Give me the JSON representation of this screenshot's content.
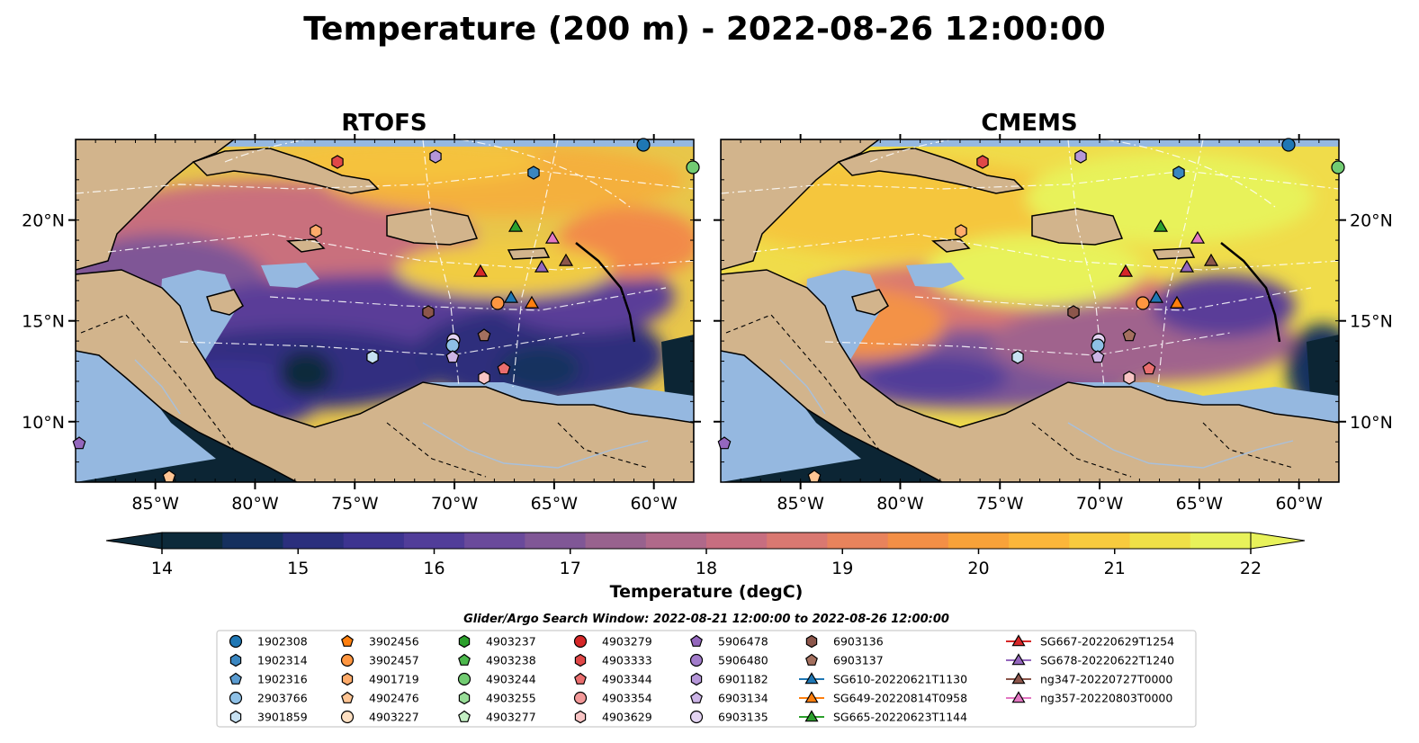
{
  "figure": {
    "title": "Temperature (200 m) - 2022-08-26 12:00:00",
    "search_window_note": "Glider/Argo Search Window: 2022-08-21 12:00:00 to 2022-08-26 12:00:00"
  },
  "chart_data": [
    {
      "type": "heatmap",
      "title": "RTOFS",
      "variable": "Temperature (200 m)",
      "x_ticks": [
        "85°W",
        "80°W",
        "75°W",
        "70°W",
        "65°W",
        "60°W"
      ],
      "y_ticks": [
        "10°N",
        "15°N",
        "20°N"
      ],
      "xlim": [
        -89,
        -58
      ],
      "ylim": [
        7,
        24
      ],
      "y_axis_side": "left",
      "grid": false
    },
    {
      "type": "heatmap",
      "title": "CMEMS",
      "variable": "Temperature (200 m)",
      "x_ticks": [
        "85°W",
        "80°W",
        "75°W",
        "70°W",
        "65°W",
        "60°W"
      ],
      "y_ticks": [
        "10°N",
        "15°N",
        "20°N"
      ],
      "xlim": [
        -89,
        -58
      ],
      "ylim": [
        7,
        24
      ],
      "y_axis_side": "right",
      "grid": false
    }
  ],
  "colorbar": {
    "label": "Temperature (degC)",
    "min": 14,
    "max": 22,
    "ticks": [
      "14",
      "15",
      "16",
      "17",
      "18",
      "19",
      "20",
      "21",
      "22"
    ],
    "extend": "both",
    "colors": [
      "#0d2a3a",
      "#15305e",
      "#2b2f7d",
      "#3d3490",
      "#513d99",
      "#6a4a9b",
      "#805796",
      "#98628e",
      "#b0698a",
      "#c76e80",
      "#d97871",
      "#e8835c",
      "#f38f46",
      "#f8a239",
      "#fbb63a",
      "#f8cb3e",
      "#efe047",
      "#e8f25a"
    ]
  },
  "map": {
    "land_color": "#d2b48c",
    "shelf_color": "#95b8e0",
    "deep_color": "#0c2534"
  },
  "legend": {
    "columns": [
      [
        {
          "label": "1902308",
          "marker": "circle",
          "color": "#1f77b4"
        },
        {
          "label": "1902314",
          "marker": "hexagon",
          "color": "#3a86c0"
        },
        {
          "label": "1902316",
          "marker": "pentagon",
          "color": "#5a9bd0"
        },
        {
          "label": "2903766",
          "marker": "circle",
          "color": "#8ec0e6"
        },
        {
          "label": "3901859",
          "marker": "hexagon",
          "color": "#c7e1f2"
        }
      ],
      [
        {
          "label": "3902456",
          "marker": "pentagon",
          "color": "#ff7f0e"
        },
        {
          "label": "3902457",
          "marker": "circle",
          "color": "#ff9640"
        },
        {
          "label": "4901719",
          "marker": "hexagon",
          "color": "#ffab6a"
        },
        {
          "label": "4902476",
          "marker": "pentagon",
          "color": "#ffc594"
        },
        {
          "label": "4903227",
          "marker": "circle",
          "color": "#ffe0c2"
        }
      ],
      [
        {
          "label": "4903237",
          "marker": "hexagon",
          "color": "#2ca02c"
        },
        {
          "label": "4903238",
          "marker": "pentagon",
          "color": "#4cb84c"
        },
        {
          "label": "4903244",
          "marker": "circle",
          "color": "#72cc72"
        },
        {
          "label": "4903255",
          "marker": "hexagon",
          "color": "#98dd98"
        },
        {
          "label": "4903277",
          "marker": "pentagon",
          "color": "#c4efc4"
        }
      ],
      [
        {
          "label": "4903279",
          "marker": "circle",
          "color": "#d62728"
        },
        {
          "label": "4903333",
          "marker": "hexagon",
          "color": "#e04848"
        },
        {
          "label": "4903344",
          "marker": "pentagon",
          "color": "#ea6e6e"
        },
        {
          "label": "4903354",
          "marker": "circle",
          "color": "#f29898"
        },
        {
          "label": "4903629",
          "marker": "hexagon",
          "color": "#f8c4c4"
        }
      ],
      [
        {
          "label": "5906478",
          "marker": "pentagon",
          "color": "#9467bd"
        },
        {
          "label": "5906480",
          "marker": "circle",
          "color": "#a27ccb"
        },
        {
          "label": "6901182",
          "marker": "hexagon",
          "color": "#b596d8"
        },
        {
          "label": "6903134",
          "marker": "pentagon",
          "color": "#ccb4e6"
        },
        {
          "label": "6903135",
          "marker": "circle",
          "color": "#e3d4f2"
        }
      ],
      [
        {
          "label": "6903136",
          "marker": "hexagon",
          "color": "#8c564b"
        },
        {
          "label": "6903137",
          "marker": "pentagon",
          "color": "#a4705f"
        },
        {
          "label": "SG610-20220621T1130",
          "marker": "triangle-line",
          "color": "#1f77b4"
        },
        {
          "label": "SG649-20220814T0958",
          "marker": "triangle-line",
          "color": "#ff7f0e"
        },
        {
          "label": "SG665-20220623T1144",
          "marker": "triangle-line",
          "color": "#2ca02c"
        }
      ],
      [
        {
          "label": "SG667-20220629T1254",
          "marker": "triangle-line",
          "color": "#d62728"
        },
        {
          "label": "SG678-20220622T1240",
          "marker": "triangle-line",
          "color": "#9467bd"
        },
        {
          "label": "ng347-20220727T0000",
          "marker": "triangle-line",
          "color": "#8c564b"
        },
        {
          "label": "ng357-20220803T0000",
          "marker": "triangle-line",
          "color": "#e377c2"
        }
      ]
    ]
  }
}
